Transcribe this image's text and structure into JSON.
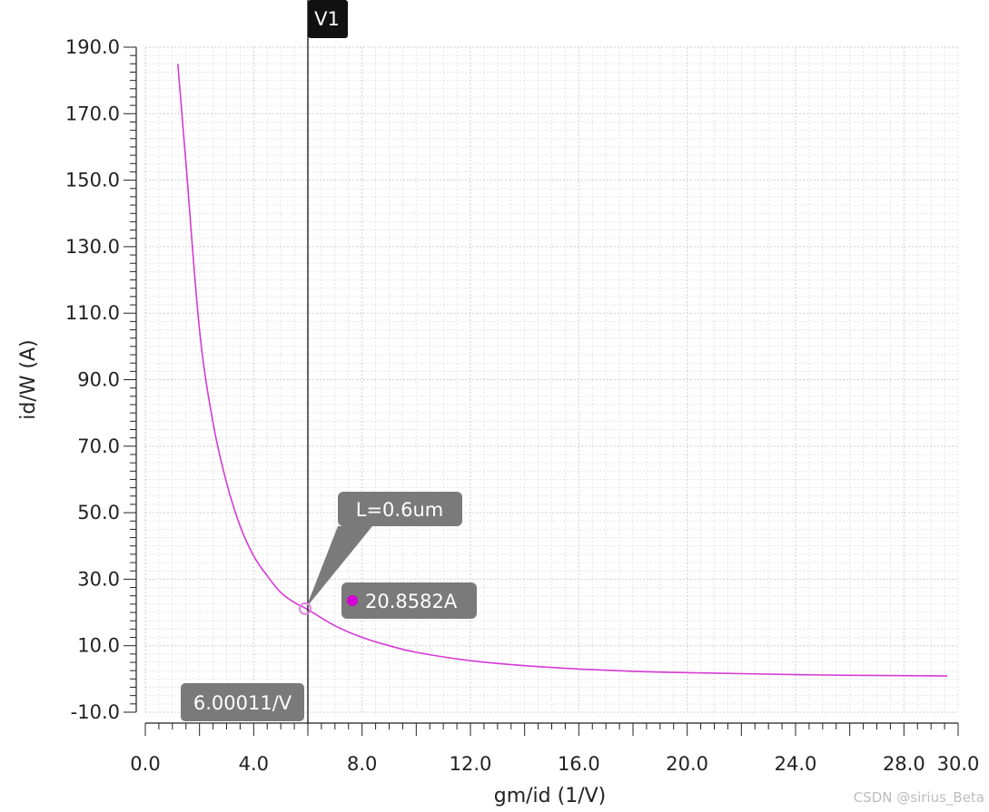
{
  "chart_data": {
    "type": "line",
    "title": "",
    "xlabel": "gm/id (1/V)",
    "ylabel": "id/W (A)",
    "xlim": [
      0,
      30
    ],
    "ylim": [
      -10,
      190
    ],
    "x_ticks": [
      "0.0",
      "4.0",
      "8.0",
      "12.0",
      "16.0",
      "20.0",
      "24.0",
      "28.0",
      "30.0"
    ],
    "x_tick_values": [
      0,
      4,
      8,
      12,
      16,
      20,
      24,
      28,
      30
    ],
    "y_ticks": [
      "-10.0",
      "10.0",
      "30.0",
      "50.0",
      "70.0",
      "90.0",
      "110.0",
      "130.0",
      "150.0",
      "170.0",
      "190.0"
    ],
    "y_tick_values": [
      -10,
      10,
      30,
      50,
      70,
      90,
      110,
      130,
      150,
      170,
      190
    ],
    "grid": true,
    "series": [
      {
        "color": "#d63ad6",
        "x": [
          1.2,
          1.5,
          2.0,
          2.5,
          3.0,
          3.5,
          4.0,
          4.5,
          5.0,
          5.5,
          6.0,
          7.0,
          8.0,
          9.0,
          10.0,
          12.0,
          14.0,
          16.0,
          18.0,
          20.0,
          22.0,
          24.0,
          26.0,
          28.0,
          29.6
        ],
        "y": [
          185,
          155,
          105,
          77,
          59,
          46,
          37,
          31,
          26,
          23,
          20.86,
          16,
          12.5,
          10,
          8,
          5.5,
          4,
          3,
          2.3,
          1.9,
          1.6,
          1.3,
          1.1,
          1.0,
          0.9
        ]
      }
    ],
    "marker": {
      "label": "V1",
      "x_readout": "6.00011/V",
      "x": 6.00011
    },
    "annotations": [
      {
        "text": "L=0.6um",
        "x": 6.0,
        "y": 20.86
      },
      {
        "text": "20.8582A",
        "x": 6.0,
        "y": 20.8582
      }
    ]
  },
  "watermark": "CSDN @sirius_Beta"
}
